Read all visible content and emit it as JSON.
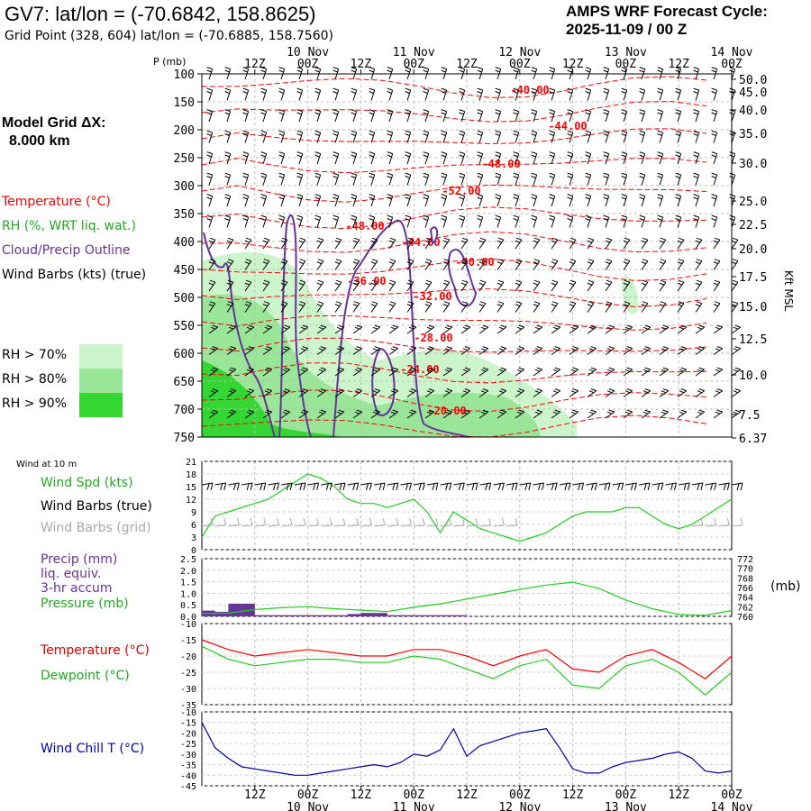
{
  "header": {
    "station_title": "GV7:  lat/lon = (-70.6842, 158.8625)",
    "grid_point": "Grid Point (328, 604) lat/lon = (-70.6885, 158.7560)",
    "cycle_label": "AMPS WRF Forecast Cycle:",
    "cycle_value": "2025-11-09 / 00  Z"
  },
  "model_grid": {
    "label": "Model Grid ΔX:",
    "value": "8.000 km"
  },
  "legend": {
    "temperature": "Temperature (°C)",
    "rh": "RH (%, WRT liq. wat.)",
    "cloud": "Cloud/Precip Outline",
    "wind": "Wind Barbs (kts) (true)",
    "rh_levels": [
      {
        "label": "RH > 70%",
        "color": "#ccf5cc"
      },
      {
        "label": "RH > 80%",
        "color": "#99e699"
      },
      {
        "label": "RH > 90%",
        "color": "#33d633"
      }
    ]
  },
  "colors": {
    "temperature": "#ff0000",
    "rh_text": "#22aa22",
    "cloud": "#663399",
    "pressure": "#22cc22",
    "dewpoint": "#22cc22",
    "windchill": "#0000aa",
    "grid_barbs": "#aaaaaa"
  },
  "time_axis": {
    "top_tick_labels": [
      "12Z",
      "00Z",
      "12Z",
      "00Z",
      "12Z",
      "00Z",
      "12Z",
      "00Z",
      "12Z",
      "00Z"
    ],
    "top_date_labels": [
      "10 Nov",
      "11 Nov",
      "12 Nov",
      "13 Nov",
      "14 Nov"
    ],
    "bottom_tick_labels": [
      "12Z",
      "00Z",
      "12Z",
      "00Z",
      "12Z",
      "00Z",
      "12Z",
      "00Z",
      "12Z",
      "00Z"
    ],
    "bottom_date_labels": [
      "10 Nov",
      "11 Nov",
      "12 Nov",
      "13 Nov",
      "14 Nov"
    ]
  },
  "panels": {
    "p_label": "P (mb)",
    "right_axis_label": "Kft MSL",
    "pressure_ticks": [
      "100",
      "150",
      "200",
      "250",
      "300",
      "350",
      "400",
      "450",
      "500",
      "550",
      "600",
      "650",
      "700",
      "750"
    ],
    "kft_ticks": [
      "50.0",
      "45.0",
      "40.0",
      "35.0",
      "30.0",
      "25.0",
      "22.5",
      "20.0",
      "17.5",
      "15.0",
      "12.5",
      "10.0",
      "7.5",
      "6.37"
    ],
    "wind10_title": "Wind at 10 m",
    "wind_spd_label": "Wind Spd (kts)",
    "wind_barbs_true_label": "Wind Barbs (true)",
    "wind_barbs_grid_label": "Wind Barbs (grid)",
    "wind_ticks": [
      "21",
      "18",
      "15",
      "12",
      "9",
      "6",
      "3",
      "0"
    ],
    "precip_label": "Precip (mm)",
    "precip_sub1": "liq. equiv.",
    "precip_sub2": "3-hr accum",
    "pressure_label": "Pressure (mb)",
    "precip_ticks": [
      "2.5",
      "2.0",
      "1.5",
      "1.0",
      "0.5",
      "0.0"
    ],
    "mslp_ticks": [
      "772",
      "770",
      "768",
      "766",
      "764",
      "762",
      "760"
    ],
    "mslp_unit": "(mb)",
    "temp_label": "Temperature (°C)",
    "dew_label": "Dewpoint (°C)",
    "temp_ticks": [
      "-10",
      "-15",
      "-20",
      "-25",
      "-30",
      "-35"
    ],
    "wc_label": "Wind Chill T (°C)",
    "wc_ticks": [
      "-10",
      "-15",
      "-20",
      "-25",
      "-30",
      "-35",
      "-40",
      "-45"
    ]
  },
  "chart_data": [
    {
      "type": "line",
      "panel": "upper-air cross-section",
      "x_hours_from_cycle": "0-120",
      "temperature_contour_labels": [
        "-40.00",
        "-44.00",
        "-48.00",
        "-52.00",
        "-48.00",
        "-44.00",
        "-40.00",
        "-36.00",
        "-32.00",
        "-28.00",
        "-24.00",
        "-20.00"
      ]
    },
    {
      "type": "line",
      "panel": "wind at 10 m",
      "x": [
        0,
        3,
        6,
        9,
        12,
        15,
        18,
        21,
        24,
        27,
        30,
        33,
        36,
        39,
        42,
        45,
        48,
        51,
        54,
        57,
        60,
        63,
        66,
        69,
        72,
        75,
        78,
        81,
        84,
        87,
        90,
        93,
        96,
        99,
        102,
        105,
        108,
        111,
        114,
        117,
        120
      ],
      "series": [
        {
          "name": "Wind Spd (kts)",
          "values": [
            3,
            8,
            9,
            10,
            11,
            12,
            14,
            16,
            18,
            17,
            15,
            12,
            11,
            11,
            10,
            11,
            12,
            9,
            4,
            9,
            7,
            5,
            4,
            3,
            2,
            3,
            4,
            6,
            8,
            9,
            9,
            9,
            10,
            10,
            8,
            6,
            5,
            6,
            8,
            10,
            12
          ]
        }
      ],
      "ylim": [
        0,
        21
      ]
    },
    {
      "type": "bar",
      "panel": "precip and pressure",
      "x": [
        0,
        3,
        6,
        9,
        12,
        15,
        18,
        21,
        24,
        27,
        30,
        33,
        36,
        39,
        42,
        45,
        48,
        51,
        54,
        57,
        60
      ],
      "precip_values": [
        0.25,
        0.2,
        0.55,
        0.55,
        0.05,
        0.05,
        0.05,
        0.05,
        0.05,
        0.05,
        0.05,
        0.1,
        0.15,
        0.15,
        0.05,
        0.05,
        0.05,
        0.05,
        0.05,
        0.05,
        0.0
      ],
      "precip_ylim": [
        0,
        2.5
      ],
      "series": [
        {
          "name": "Pressure (mb)",
          "x": [
            0,
            6,
            12,
            18,
            24,
            30,
            36,
            42,
            48,
            54,
            60,
            66,
            72,
            78,
            84,
            90,
            96,
            102,
            108,
            114,
            120
          ],
          "values": [
            760.6,
            760.7,
            761.4,
            761.8,
            762.0,
            761.6,
            761.3,
            761.0,
            761.9,
            762.6,
            763.6,
            764.6,
            765.6,
            766.5,
            767.1,
            765.8,
            763.4,
            761.6,
            760.4,
            760.2,
            761.2
          ]
        }
      ],
      "pressure_ylim": [
        760,
        772
      ]
    },
    {
      "type": "line",
      "panel": "temperature and dewpoint",
      "x": [
        0,
        6,
        12,
        18,
        24,
        30,
        36,
        42,
        48,
        54,
        60,
        66,
        72,
        78,
        84,
        90,
        96,
        102,
        108,
        114,
        120
      ],
      "series": [
        {
          "name": "Temperature (°C)",
          "values": [
            -15,
            -18,
            -20,
            -19,
            -18,
            -19,
            -20,
            -20,
            -18,
            -18,
            -20,
            -23,
            -20,
            -18,
            -24,
            -25,
            -20,
            -18,
            -22,
            -27,
            -20
          ]
        },
        {
          "name": "Dewpoint (°C)",
          "values": [
            -17,
            -21,
            -23,
            -22,
            -21,
            -21,
            -22,
            -22,
            -20,
            -21,
            -24,
            -27,
            -23,
            -21,
            -29,
            -30,
            -23,
            -21,
            -25,
            -32,
            -25
          ]
        }
      ],
      "ylim": [
        -35,
        -10
      ]
    },
    {
      "type": "line",
      "panel": "wind chill",
      "x": [
        0,
        3,
        6,
        9,
        12,
        15,
        18,
        21,
        24,
        27,
        30,
        33,
        36,
        39,
        42,
        45,
        48,
        51,
        54,
        57,
        60,
        63,
        66,
        69,
        72,
        75,
        78,
        81,
        84,
        87,
        90,
        93,
        96,
        99,
        102,
        105,
        108,
        111,
        114,
        117,
        120
      ],
      "series": [
        {
          "name": "Wind Chill T (°C)",
          "values": [
            -15,
            -27,
            -32,
            -36,
            -37,
            -38,
            -39,
            -40,
            -40,
            -39,
            -38,
            -37,
            -36,
            -35,
            -36,
            -34,
            -30,
            -31,
            -28,
            -18,
            -31,
            -26,
            -24,
            -22,
            -20,
            -19,
            -18,
            -27,
            -37,
            -39,
            -39,
            -36,
            -34,
            -33,
            -32,
            -30,
            -29,
            -32,
            -38,
            -39,
            -38
          ]
        }
      ],
      "ylim": [
        -45,
        -10
      ]
    }
  ]
}
